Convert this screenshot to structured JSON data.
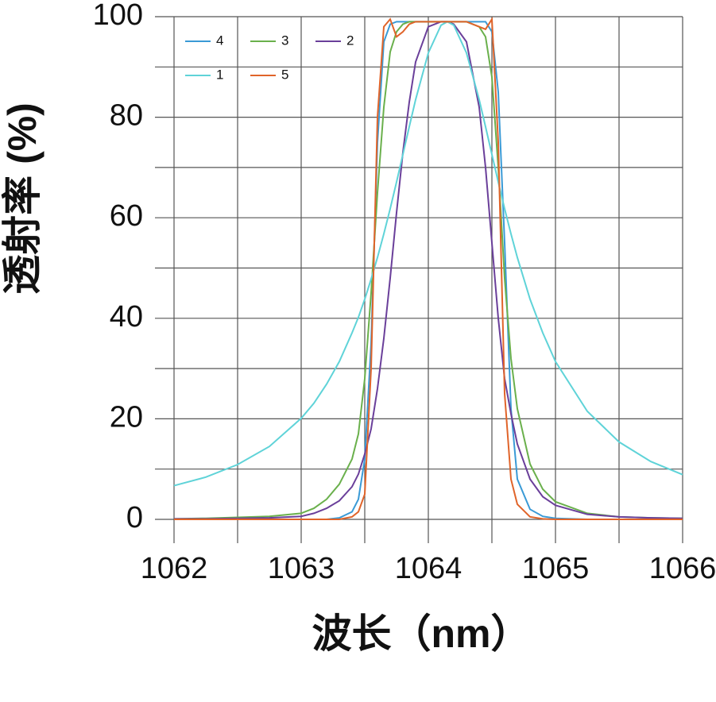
{
  "chart_data": {
    "type": "line",
    "x_label": "波长（nm）",
    "y_label": "透射率 (%)",
    "x": [
      1062,
      1062.25,
      1062.5,
      1062.75,
      1063,
      1063.1,
      1063.2,
      1063.3,
      1063.4,
      1063.45,
      1063.5,
      1063.55,
      1063.6,
      1063.65,
      1063.7,
      1063.75,
      1063.8,
      1063.85,
      1063.9,
      1064.0,
      1064.1,
      1064.15,
      1064.2,
      1064.3,
      1064.4,
      1064.45,
      1064.5,
      1064.55,
      1064.6,
      1064.65,
      1064.7,
      1064.8,
      1064.9,
      1065.0,
      1065.25,
      1065.5,
      1065.75,
      1066
    ],
    "series": [
      {
        "name": "4",
        "color": "#3a9ad6",
        "values": [
          0,
          0,
          0,
          0,
          0,
          0,
          0,
          0.3,
          1.5,
          4,
          12,
          35,
          75,
          95,
          98.5,
          99,
          99,
          99,
          99,
          99,
          99,
          99,
          99,
          99,
          99,
          99,
          97,
          85,
          55,
          22,
          8,
          2,
          0.6,
          0.2,
          0,
          0,
          0,
          0
        ]
      },
      {
        "name": "3",
        "color": "#6ab04c",
        "values": [
          0.1,
          0.2,
          0.4,
          0.6,
          1.2,
          2.2,
          4,
          7,
          12,
          17,
          28,
          45,
          65,
          82,
          93,
          97,
          98.5,
          99,
          99,
          99,
          99,
          99,
          99,
          99,
          98,
          96,
          88,
          70,
          48,
          32,
          22,
          11,
          6,
          3.5,
          1.2,
          0.5,
          0.3,
          0.2
        ]
      },
      {
        "name": "2",
        "color": "#6a3f9a",
        "values": [
          0.1,
          0.1,
          0.2,
          0.3,
          0.6,
          1.2,
          2.2,
          3.7,
          6.5,
          9,
          13,
          18,
          26,
          36,
          48,
          61,
          73,
          83,
          91,
          98,
          99,
          99,
          98.5,
          95,
          82,
          70,
          55,
          40,
          28,
          21,
          15,
          8,
          4.5,
          2.8,
          1.0,
          0.5,
          0.3,
          0.2
        ]
      },
      {
        "name": "1",
        "color": "#5fd3d8",
        "values": [
          6.7,
          8.4,
          10.9,
          14.5,
          20.1,
          23.1,
          26.9,
          31.4,
          37.1,
          40.2,
          43.8,
          47.8,
          52.1,
          56.8,
          61.8,
          67.1,
          72.6,
          78.1,
          83.5,
          92.8,
          98.3,
          99,
          98.3,
          92.8,
          83.5,
          78.1,
          72.6,
          67.1,
          61.8,
          56.8,
          52.1,
          43.8,
          37.1,
          31.4,
          21.5,
          15.4,
          11.5,
          8.9
        ]
      },
      {
        "name": "5",
        "color": "#e0642a",
        "values": [
          0,
          0,
          0,
          0,
          0,
          0,
          0,
          0,
          0.5,
          1.5,
          5,
          30,
          80,
          98,
          99.5,
          96,
          97,
          98.5,
          99,
          99,
          99,
          99,
          99,
          99,
          98,
          97.5,
          99.5,
          75,
          25,
          8,
          3,
          0.5,
          0.1,
          0,
          0,
          0,
          0,
          0
        ]
      }
    ],
    "xlim": [
      1062,
      1066
    ],
    "ylim": [
      0,
      100
    ],
    "xticks": [
      1062,
      1063,
      1064,
      1065,
      1066
    ],
    "yticks": [
      0,
      20,
      40,
      60,
      80,
      100
    ],
    "xgrid": [
      1062,
      1062.5,
      1063,
      1063.5,
      1064,
      1064.5,
      1065,
      1065.5,
      1066
    ],
    "ygrid": [
      0,
      10,
      20,
      30,
      40,
      50,
      60,
      70,
      80,
      90,
      100
    ],
    "grid": true,
    "legend": "top-left"
  }
}
